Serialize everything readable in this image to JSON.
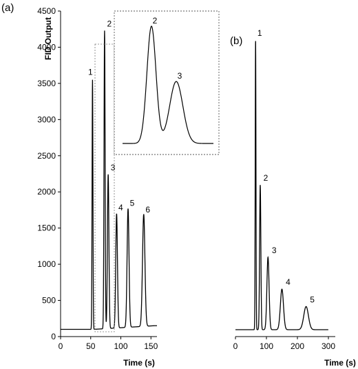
{
  "figure": {
    "panel_a_label": "(a)",
    "panel_b_label": "(b)"
  },
  "chart_data": [
    {
      "type": "line",
      "panel": "(a)",
      "xlabel": "Time (s)",
      "ylabel": "FID Output",
      "xlim": [
        0,
        160
      ],
      "ylim": [
        0,
        4500
      ],
      "xticks": [
        0,
        50,
        100,
        150
      ],
      "yticks": [
        0,
        500,
        1000,
        1500,
        2000,
        2500,
        3000,
        3500,
        4000,
        4500
      ],
      "baseline": 100,
      "end_value": 150,
      "grid": false,
      "legend": "none",
      "peaks": [
        {
          "label": "1",
          "x": 53,
          "height": 3550
        },
        {
          "label": "2",
          "x": 73,
          "height": 4220
        },
        {
          "label": "3",
          "x": 79,
          "height": 2230
        },
        {
          "label": "4",
          "x": 93,
          "height": 1680
        },
        {
          "label": "5",
          "x": 112,
          "height": 1740
        },
        {
          "label": "6",
          "x": 138,
          "height": 1650
        }
      ],
      "inset": {
        "shows_peaks": [
          "2",
          "3"
        ],
        "peaks": [
          {
            "label": "2",
            "x": 73,
            "height": 4220
          },
          {
            "label": "3",
            "x": 79,
            "height": 2230
          }
        ]
      }
    },
    {
      "type": "line",
      "panel": "(b)",
      "xlabel": "Time (s)",
      "ylabel": "",
      "xlim": [
        0,
        320
      ],
      "xticks": [
        0,
        100,
        200,
        300
      ],
      "grid": false,
      "legend": "none",
      "peaks": [
        {
          "label": "1",
          "x": 65,
          "height": 1.0
        },
        {
          "label": "2",
          "x": 80,
          "height": 0.5
        },
        {
          "label": "3",
          "x": 105,
          "height": 0.25
        },
        {
          "label": "4",
          "x": 150,
          "height": 0.14
        },
        {
          "label": "5",
          "x": 228,
          "height": 0.08
        }
      ]
    }
  ]
}
